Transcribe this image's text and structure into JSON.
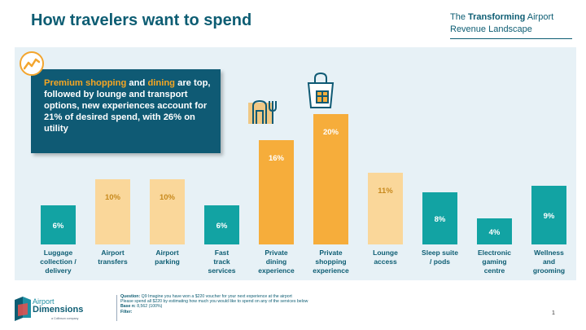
{
  "title": "How travelers want to spend",
  "brand": {
    "pre": "The ",
    "bold": "Transforming",
    "post": " Airport",
    "line2": "Revenue Landscape"
  },
  "callout": {
    "hl1": "Premium shopping",
    "mid1": " and ",
    "hl2": "dining",
    "rest": " are top, followed by lounge and transport options, new experiences account for 21% of desired spend, with 26% on utility"
  },
  "chart_data": {
    "type": "bar",
    "categories": [
      "Luggage collection / delivery",
      "Airport transfers",
      "Airport parking",
      "Fast track services",
      "Private dining experience",
      "Private shopping experience",
      "Lounge access",
      "Sleep suite / pods",
      "Electronic gaming centre",
      "Wellness and grooming"
    ],
    "label_lines": [
      [
        "Luggage",
        "collection /",
        "delivery"
      ],
      [
        "Airport",
        "transfers"
      ],
      [
        "Airport",
        "parking"
      ],
      [
        "Fast",
        "track",
        "services"
      ],
      [
        "Private",
        "dining",
        "experience"
      ],
      [
        "Private",
        "shopping",
        "experience"
      ],
      [
        "Lounge",
        "access"
      ],
      [
        "Sleep suite",
        "/ pods"
      ],
      [
        "Electronic",
        "gaming",
        "centre"
      ],
      [
        "Wellness",
        "and",
        "grooming"
      ]
    ],
    "values": [
      6,
      10,
      10,
      6,
      16,
      20,
      11,
      8,
      4,
      9
    ],
    "data_labels": [
      "6%",
      "10%",
      "10%",
      "6%",
      "16%",
      "20%",
      "11%",
      "8%",
      "4%",
      "9%"
    ],
    "bar_colors": [
      "#12a3a3",
      "#fad79a",
      "#fad79a",
      "#12a3a3",
      "#f6ad3b",
      "#f6ad3b",
      "#fad79a",
      "#12a3a3",
      "#12a3a3",
      "#12a3a3"
    ],
    "label_colors": [
      "#ffffff",
      "#c88a1e",
      "#c88a1e",
      "#ffffff",
      "#ffffff",
      "#ffffff",
      "#c88a1e",
      "#ffffff",
      "#ffffff",
      "#ffffff"
    ],
    "ylim": [
      0,
      20
    ]
  },
  "footer": {
    "q_label": "Question:",
    "q_text": " Q9 Imagine you have won a $220 voucher for your next experience at the airport",
    "q_text2": "Please spend all $220 by estimating how much you would like to spend on any of the services below",
    "base_label": "Base n:",
    "base_text": " 8,562 (100%)",
    "filter_label": "Filter:"
  },
  "logo": {
    "word1": "Airport",
    "word2": "Dimensions",
    "sub": "a Collinson company"
  },
  "page_number": "1"
}
